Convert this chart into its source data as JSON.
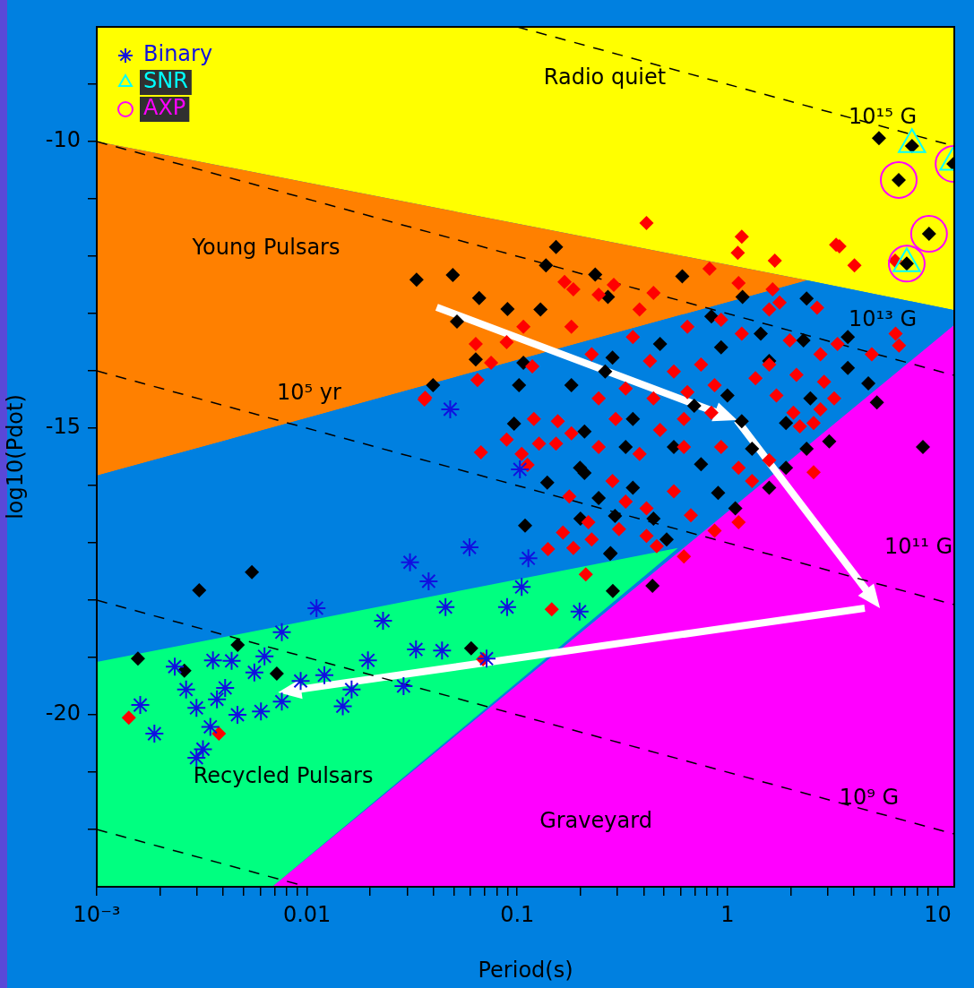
{
  "chart_data": {
    "type": "scatter",
    "xlabel": "Period(s)",
    "ylabel": "log10(Pdot)",
    "log": "x",
    "legend": "top left",
    "xlim": [
      0.001,
      12
    ],
    "ylim": [
      -23,
      -8
    ],
    "xticks": [
      {
        "value": 0.001,
        "label": "10⁻³"
      },
      {
        "value": 0.002,
        "label": null
      },
      {
        "value": 0.003,
        "label": null
      },
      {
        "value": 0.004,
        "label": null
      },
      {
        "value": 0.005,
        "label": null
      },
      {
        "value": 0.006,
        "label": null
      },
      {
        "value": 0.007,
        "label": null
      },
      {
        "value": 0.008,
        "label": null
      },
      {
        "value": 0.009,
        "label": null
      },
      0.01,
      {
        "value": 0.02,
        "label": null
      },
      {
        "value": 0.03,
        "label": null
      },
      {
        "value": 0.04,
        "label": null
      },
      {
        "value": 0.05,
        "label": null
      },
      {
        "value": 0.06,
        "label": null
      },
      {
        "value": 0.07,
        "label": null
      },
      {
        "value": 0.08,
        "label": null
      },
      {
        "value": 0.09,
        "label": null
      },
      0.1,
      {
        "value": 0.2,
        "label": null
      },
      {
        "value": 0.3,
        "label": null
      },
      {
        "value": 0.4,
        "label": null
      },
      {
        "value": 0.5,
        "label": null
      },
      {
        "value": 0.6,
        "label": null
      },
      {
        "value": 0.7,
        "label": null
      },
      {
        "value": 0.8,
        "label": null
      },
      {
        "value": 0.9,
        "label": null
      },
      1,
      {
        "value": 2,
        "label": null
      },
      {
        "value": 3,
        "label": null
      },
      {
        "value": 4,
        "label": null
      },
      {
        "value": 5,
        "label": null
      },
      {
        "value": 6,
        "label": null
      },
      {
        "value": 7,
        "label": null
      },
      {
        "value": 8,
        "label": null
      },
      {
        "value": 9,
        "label": null
      },
      10
    ],
    "yticks": [
      {
        "value": -9,
        "label": null
      },
      -10,
      {
        "value": -11,
        "label": null
      },
      {
        "value": -12,
        "label": null
      },
      {
        "value": -13,
        "label": null
      },
      {
        "value": -14,
        "label": null
      },
      -15,
      {
        "value": -16,
        "label": null
      },
      {
        "value": -17,
        "label": null
      },
      {
        "value": -18,
        "label": null
      },
      {
        "value": -19,
        "label": null
      },
      -20,
      {
        "value": -21,
        "label": null
      },
      {
        "value": -22,
        "label": null
      }
    ],
    "annotations": [
      "Radio quiet",
      "Young Pulsars",
      "Recycled Pulsars",
      "Graveyard",
      "10¹⁵ G",
      "10¹³ G",
      "10¹¹ G",
      "10⁹ G",
      "10⁵ yr"
    ],
    "series": [
      {
        "type": "line",
        "line_style": "dashed",
        "marker": "none",
        "color": "#000000",
        "x": [
          0.1,
          12
        ],
        "values": [
          -8,
          -10.08
        ]
      },
      {
        "type": "line",
        "line_style": "dashed",
        "marker": "none",
        "color": "#000000",
        "x": [
          0.001,
          12
        ],
        "values": [
          -10,
          -14.08
        ]
      },
      {
        "type": "line",
        "line_style": "dashed",
        "marker": "none",
        "color": "#000000",
        "x": [
          0.001,
          12
        ],
        "values": [
          -14,
          -18.08
        ]
      },
      {
        "type": "line",
        "line_style": "dashed",
        "marker": "none",
        "color": "#000000",
        "x": [
          0.001,
          12
        ],
        "values": [
          -18,
          -22.08
        ]
      },
      {
        "type": "line",
        "line_style": "dashed",
        "marker": "none",
        "color": "#000000",
        "x": [
          0.001,
          0.01
        ],
        "values": [
          -22,
          -23
        ]
      },
      {
        "marker": "diamond",
        "color": "#000000",
        "x": [
          0.00157,
          0.00547,
          0.00307,
          0.00261,
          0.00718,
          0.0604,
          0.109,
          0.2,
          0.292,
          0.285,
          0.277,
          0.00468,
          0.44,
          0.0332,
          0.0494,
          0.153,
          0.137,
          0.235,
          0.61,
          0.0659,
          0.0899,
          0.129,
          0.27,
          1.18,
          2.38,
          0.0517,
          0.0635,
          0.107,
          0.0398,
          0.102,
          0.0966,
          0.139,
          0.209,
          0.278,
          1.44,
          3.74,
          4.68,
          5.14,
          8.51,
          3.05,
          2.38,
          1.9,
          1.31,
          1.17,
          3.74,
          2.48,
          1.09,
          0.514,
          0.445,
          0.244,
          0.199,
          0.209,
          0.262,
          0.355,
          0.556,
          0.695,
          0.749,
          0.355,
          0.903,
          1.58,
          1.9,
          0.933,
          0.478,
          0.284,
          0.181,
          0.328,
          1.0,
          1.58,
          0.839,
          2.3,
          5.26,
          7.55,
          11.9,
          6.53,
          9.1,
          7.13
        ],
        "values": [
          -19.02,
          -17.51,
          -17.83,
          -19.23,
          -19.28,
          -18.84,
          -16.7,
          -16.58,
          -16.53,
          -17.84,
          -17.19,
          -18.78,
          -17.75,
          -12.41,
          -12.33,
          -11.84,
          -12.16,
          -12.32,
          -12.35,
          -12.73,
          -12.92,
          -12.93,
          -12.71,
          -12.71,
          -12.74,
          -13.14,
          -13.8,
          -13.86,
          -14.25,
          -14.25,
          -14.92,
          -15.95,
          -15.78,
          -17.18,
          -13.35,
          -13.41,
          -14.22,
          -14.55,
          -15.33,
          -15.23,
          -15.36,
          -15.69,
          -15.36,
          -14.88,
          -13.95,
          -14.48,
          -16.4,
          -16.94,
          -16.58,
          -16.22,
          -15.69,
          -15.06,
          -14.01,
          -14.84,
          -15.33,
          -14.61,
          -15.63,
          -16.04,
          -16.13,
          -16.04,
          -14.91,
          -13.59,
          -13.53,
          -13.77,
          -14.25,
          -15.33,
          -14.43,
          -13.83,
          -13.05,
          -13.47,
          -9.94,
          -10.08,
          -10.39,
          -10.67,
          -11.61,
          -12.13
        ]
      },
      {
        "marker": "diamond",
        "color": "#ff0000",
        "x": [
          0.412,
          1.17,
          1.12,
          1.68,
          3.41,
          4.02,
          0.822,
          1.13,
          0.288,
          0.168,
          0.185,
          0.244,
          0.382,
          0.445,
          1.64,
          2.67,
          6.31,
          6.55,
          4.86,
          3.34,
          0.0635,
          0.0751,
          0.0891,
          0.0647,
          0.0362,
          0.118,
          0.107,
          0.181,
          0.12,
          0.156,
          0.0891,
          0.127,
          0.153,
          0.0672,
          0.105,
          0.181,
          0.226,
          0.355,
          0.645,
          0.933,
          1.17,
          1.58,
          1.77,
          1.98,
          2.77,
          2.13,
          1.58,
          2.88,
          3.22,
          2.77,
          2.57,
          2.06,
          1.71,
          1.36,
          0.749,
          0.556,
          0.428,
          0.328,
          0.244,
          0.445,
          0.645,
          0.869,
          0.839,
          0.621,
          0.478,
          0.294,
          0.244,
          0.382,
          0.621,
          0.933,
          1.13,
          1.31,
          1.58,
          2.21,
          2.57,
          1.13,
          0.869,
          0.67,
          0.556,
          0.412,
          0.328,
          0.284,
          0.305,
          0.412,
          0.461,
          0.621,
          0.226,
          0.185,
          0.165,
          0.218,
          0.177,
          0.14,
          0.212,
          0.146,
          0.0688,
          0.00142,
          0.00381,
          0.112,
          0.0365,
          3.29,
          6.28
        ],
        "values": [
          -11.42,
          -11.66,
          -11.94,
          -12.08,
          -11.83,
          -12.16,
          -12.22,
          -12.47,
          -12.5,
          -12.45,
          -12.58,
          -12.67,
          -12.93,
          -12.64,
          -12.58,
          -12.9,
          -13.35,
          -13.56,
          -13.71,
          -13.53,
          -13.53,
          -13.86,
          -13.5,
          -14.16,
          -14.5,
          -13.92,
          -13.23,
          -13.23,
          -14.84,
          -14.88,
          -15.2,
          -15.27,
          -15.27,
          -15.42,
          -15.45,
          -15.09,
          -13.71,
          -13.41,
          -13.23,
          -13.11,
          -13.35,
          -12.93,
          -12.81,
          -13.47,
          -13.71,
          -14.07,
          -13.89,
          -14.19,
          -14.48,
          -14.67,
          -14.91,
          -14.73,
          -14.43,
          -14.13,
          -13.89,
          -14.01,
          -13.83,
          -14.31,
          -14.48,
          -14.48,
          -14.37,
          -14.25,
          -14.73,
          -14.84,
          -15.03,
          -14.84,
          -15.33,
          -15.45,
          -15.33,
          -15.33,
          -15.69,
          -15.92,
          -15.56,
          -14.97,
          -15.77,
          -16.64,
          -16.79,
          -16.52,
          -16.1,
          -16.4,
          -16.28,
          -15.92,
          -16.76,
          -16.88,
          -17.06,
          -17.24,
          -16.94,
          -17.09,
          -16.82,
          -16.64,
          -16.19,
          -17.11,
          -17.55,
          -18.16,
          -19.03,
          -20.05,
          -20.33,
          -15.64,
          -14.47,
          -11.8,
          -12.08
        ]
      },
      {
        "name": "Binary",
        "marker": "cross",
        "color": "#1010e0",
        "x": [
          0.00161,
          0.00188,
          0.00235,
          0.00266,
          0.00357,
          0.00438,
          0.00373,
          0.00408,
          0.00298,
          0.0032,
          0.00298,
          0.00347,
          0.00467,
          0.00562,
          0.00628,
          0.00604,
          0.00759,
          0.00759,
          0.00933,
          0.0111,
          0.0121,
          0.0148,
          0.0163,
          0.0195,
          0.023,
          0.0288,
          0.0309,
          0.0379,
          0.0439,
          0.0456,
          0.0593,
          0.0715,
          0.0895,
          0.105,
          0.113,
          0.198,
          0.033,
          0.048,
          0.103
        ],
        "values": [
          -19.83,
          -20.33,
          -19.16,
          -19.56,
          -19.05,
          -19.06,
          -19.73,
          -19.53,
          -19.88,
          -20.6,
          -20.75,
          -20.21,
          -20.0,
          -19.26,
          -18.98,
          -19.94,
          -18.56,
          -19.77,
          -19.41,
          -18.14,
          -19.31,
          -19.85,
          -19.56,
          -19.05,
          -18.36,
          -19.5,
          -17.34,
          -17.67,
          -18.88,
          -18.12,
          -17.08,
          -19.02,
          -18.12,
          -17.77,
          -17.27,
          -18.2,
          -18.86,
          -14.67,
          -15.72
        ]
      },
      {
        "name": "SNR",
        "marker": "triangle",
        "color": "#00ffff",
        "x": [
          7.55,
          11.9,
          7.13
        ],
        "values": [
          -10.05,
          -10.36,
          -12.13
        ]
      },
      {
        "name": "AXP",
        "marker": "circle",
        "color": "#ff00ff",
        "x": [
          6.53,
          11.9,
          9.1,
          7.13
        ],
        "values": [
          -10.67,
          -10.39,
          -11.61,
          -12.13
        ]
      }
    ]
  }
}
